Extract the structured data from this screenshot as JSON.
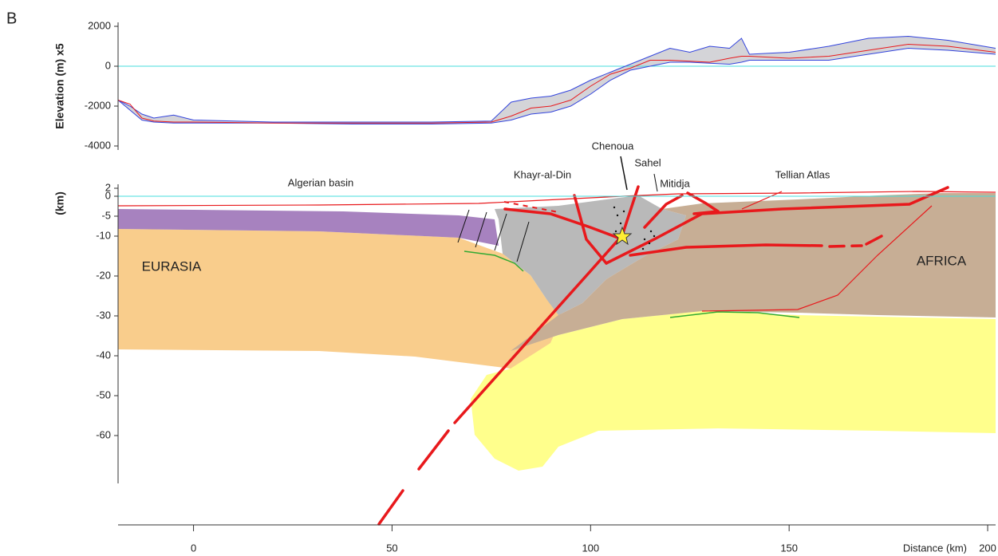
{
  "panel_label": "B",
  "chart_data": [
    {
      "type": "line",
      "ylabel": "Elevation (m) x5",
      "x": [
        -19,
        -16,
        -13,
        -10,
        -5,
        0,
        20,
        40,
        60,
        75,
        80,
        85,
        90,
        95,
        100,
        105,
        110,
        115,
        120,
        125,
        130,
        135,
        138,
        140,
        150,
        160,
        170,
        180,
        190,
        202
      ],
      "series": [
        {
          "name": "max",
          "color": "#3344dd",
          "values": [
            -1700,
            -2000,
            -2400,
            -2600,
            -2450,
            -2700,
            -2800,
            -2800,
            -2800,
            -2750,
            -1800,
            -1600,
            -1500,
            -1200,
            -700,
            -300,
            100,
            500,
            900,
            700,
            1000,
            900,
            1400,
            600,
            700,
            1000,
            1400,
            1500,
            1300,
            900
          ]
        },
        {
          "name": "min",
          "color": "#3344dd",
          "values": [
            -1700,
            -2200,
            -2700,
            -2800,
            -2850,
            -2850,
            -2850,
            -2900,
            -2900,
            -2850,
            -2700,
            -2400,
            -2300,
            -2000,
            -1400,
            -700,
            -200,
            0,
            200,
            200,
            150,
            100,
            200,
            300,
            300,
            300,
            600,
            900,
            800,
            600
          ]
        },
        {
          "name": "mean",
          "color": "#e8191c",
          "values": [
            -1700,
            -1900,
            -2600,
            -2750,
            -2800,
            -2800,
            -2850,
            -2850,
            -2850,
            -2800,
            -2500,
            -2100,
            -2000,
            -1700,
            -1000,
            -400,
            -100,
            300,
            300,
            250,
            200,
            400,
            500,
            500,
            400,
            500,
            800,
            1100,
            1000,
            700
          ]
        }
      ],
      "range_fill": "#d4d4d8",
      "sea_level": 0,
      "sea_level_color": "#44dddd",
      "xlim": [
        -19,
        202
      ],
      "ylim": [
        -4200,
        2200
      ],
      "yticks": [
        2000,
        0,
        -2000,
        -4000
      ]
    },
    {
      "type": "cross-section",
      "ylabel": "(km)",
      "xlabel": "Distance (km)",
      "xlim": [
        -19,
        202
      ],
      "ylim": [
        -72,
        3
      ],
      "xticks": [
        0,
        50,
        100,
        150,
        200
      ],
      "yticks": [
        2,
        0,
        -5,
        -10,
        -20,
        -30,
        -40,
        -50,
        -60
      ],
      "labels": [
        "Algerian basin",
        "Khayr-al-Din",
        "Chenoua",
        "Sahel",
        "Mitidja",
        "Tellian Atlas",
        "EURASIA",
        "AFRICA"
      ]
    }
  ]
}
